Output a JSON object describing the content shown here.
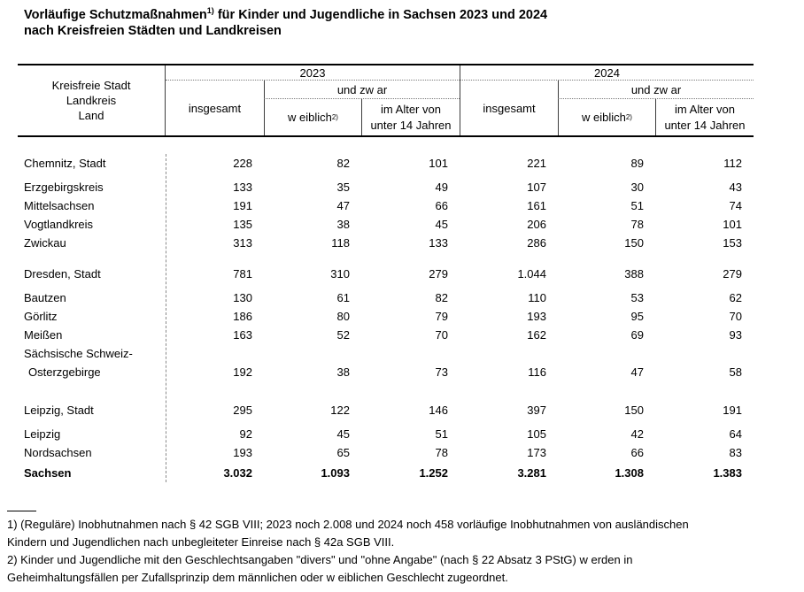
{
  "title": {
    "line1_text": "Vorläufige Schutzmaßnahmen",
    "line1_footnote_ref": "1)",
    "line1_rest": " für Kinder und Jugendliche in Sachsen 2023 und 2024",
    "line2": "nach Kreisfreien Städten und Landkreisen"
  },
  "table": {
    "stub_header_lines": [
      "Kreisfreie Stadt",
      "Landkreis",
      "Land"
    ],
    "years": [
      "2023",
      "2024"
    ],
    "subheaders": {
      "insgesamt": "insgesamt",
      "und_zwar": "und zw ar",
      "weiblich": "w eiblich",
      "weiblich_footnote_ref": "2)",
      "alter_line1": "im Alter von",
      "alter_line2": "unter 14 Jahren"
    },
    "rows": [
      {
        "label": "Chemnitz, Stadt",
        "values": [
          "228",
          "82",
          "101",
          "221",
          "89",
          "112"
        ],
        "gap": "first"
      },
      {
        "label": "Erzgebirgskreis",
        "values": [
          "133",
          "35",
          "49",
          "107",
          "30",
          "43"
        ],
        "gap": "sm"
      },
      {
        "label": "Mittelsachsen",
        "values": [
          "191",
          "47",
          "66",
          "161",
          "51",
          "74"
        ]
      },
      {
        "label": "Vogtlandkreis",
        "values": [
          "135",
          "38",
          "45",
          "206",
          "78",
          "101"
        ]
      },
      {
        "label": "Zwickau",
        "values": [
          "313",
          "118",
          "133",
          "286",
          "150",
          "153"
        ]
      },
      {
        "label": "Dresden, Stadt",
        "values": [
          "781",
          "310",
          "279",
          "1.044",
          "388",
          "279"
        ],
        "gap": "md"
      },
      {
        "label": "Bautzen",
        "values": [
          "130",
          "61",
          "82",
          "110",
          "53",
          "62"
        ],
        "gap": "sm"
      },
      {
        "label": "Görlitz",
        "values": [
          "186",
          "80",
          "79",
          "193",
          "95",
          "70"
        ]
      },
      {
        "label": "Meißen",
        "values": [
          "163",
          "52",
          "70",
          "162",
          "69",
          "93"
        ]
      },
      {
        "label": "Sächsische Schweiz-",
        "label_line2": "Osterzgebirge",
        "values": [
          "192",
          "38",
          "73",
          "116",
          "47",
          "58"
        ]
      },
      {
        "label": "Leipzig, Stadt",
        "values": [
          "295",
          "122",
          "146",
          "397",
          "150",
          "191"
        ],
        "gap": "lg"
      },
      {
        "label": "Leipzig",
        "values": [
          "92",
          "45",
          "51",
          "105",
          "42",
          "64"
        ],
        "gap": "sm"
      },
      {
        "label": "Nordsachsen",
        "values": [
          "193",
          "65",
          "78",
          "173",
          "66",
          "83"
        ]
      },
      {
        "label": "Sachsen",
        "values": [
          "3.032",
          "1.093",
          "1.252",
          "3.281",
          "1.308",
          "1.383"
        ],
        "bold": true,
        "gap": "xs"
      }
    ]
  },
  "footnotes": {
    "lines": [
      "1) (Reguläre) Inobhutnahmen nach § 42 SGB VIII; 2023 noch 2.008 und 2024 noch 458 vorläufige Inobhutnahmen von ausländischen",
      "Kindern und Jugendlichen nach unbegleiteter Einreise nach § 42a SGB VIII.",
      "2) Kinder und Jugendliche mit den Geschlechtsangaben \"divers\" und \"ohne Angabe\" (nach § 22 Absatz 3 PStG) w erden in",
      "Geheimhaltungsfällen per Zufallsprinzip dem männlichen oder w eiblichen Geschlecht zugeordnet."
    ]
  },
  "colors": {
    "text": "#000000",
    "rule_strong": "#000000",
    "rule_dotted": "#7a7a7a"
  }
}
